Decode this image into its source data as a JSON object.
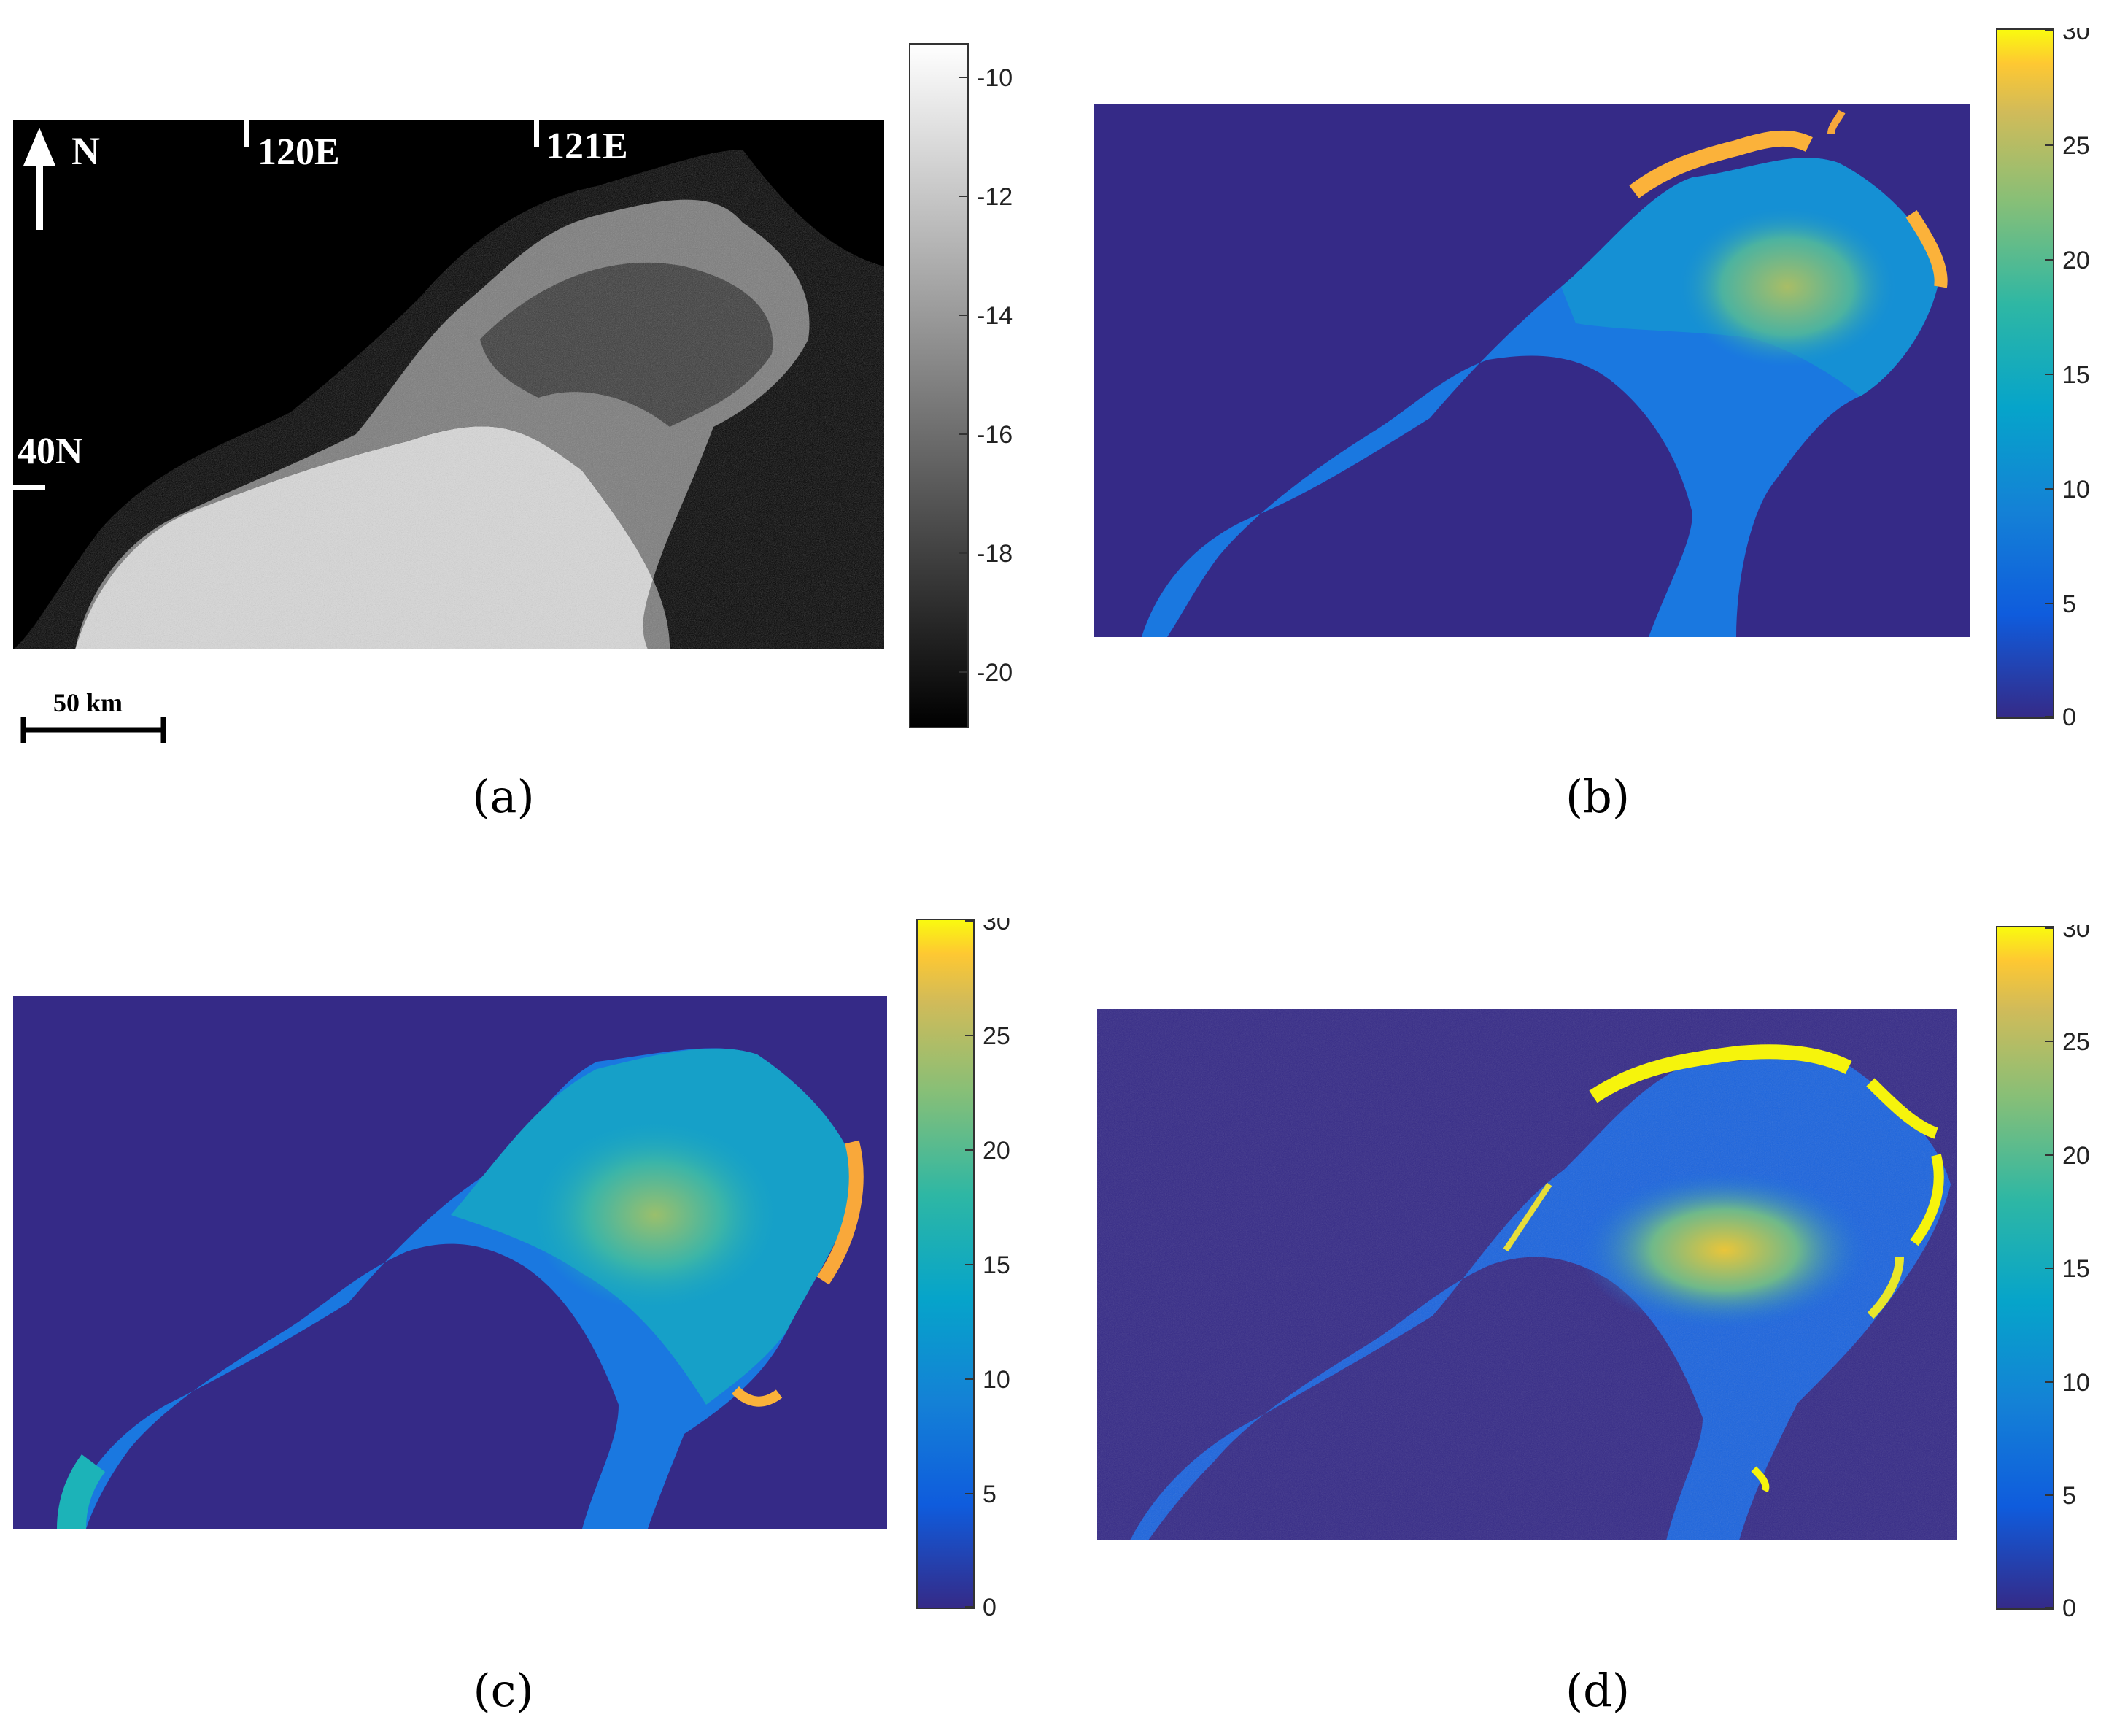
{
  "panels": {
    "a": {
      "caption": "(a)",
      "map_labels": {
        "north": "N",
        "lon1": "120E",
        "lon2": "121E",
        "lat": "40N"
      },
      "scale_bar": "50 km",
      "colorbar": {
        "colormap": "gray",
        "ticks": [
          "-10",
          "-12",
          "-14",
          "-16",
          "-18",
          "-20"
        ]
      }
    },
    "b": {
      "caption": "(b)",
      "colorbar": {
        "colormap": "parula",
        "ticks": [
          "30",
          "25",
          "20",
          "15",
          "10",
          "5",
          "0"
        ]
      }
    },
    "c": {
      "caption": "(c)",
      "colorbar": {
        "colormap": "parula",
        "ticks": [
          "30",
          "25",
          "20",
          "15",
          "10",
          "5",
          "0"
        ]
      }
    },
    "d": {
      "caption": "(d)",
      "colorbar": {
        "colormap": "parula",
        "ticks": [
          "30",
          "25",
          "20",
          "15",
          "10",
          "5",
          "0"
        ]
      }
    }
  },
  "colors": {
    "background_deep": "#352a87",
    "parula_low": "#3d2bd0",
    "parula_high": "#f9fb0e"
  }
}
